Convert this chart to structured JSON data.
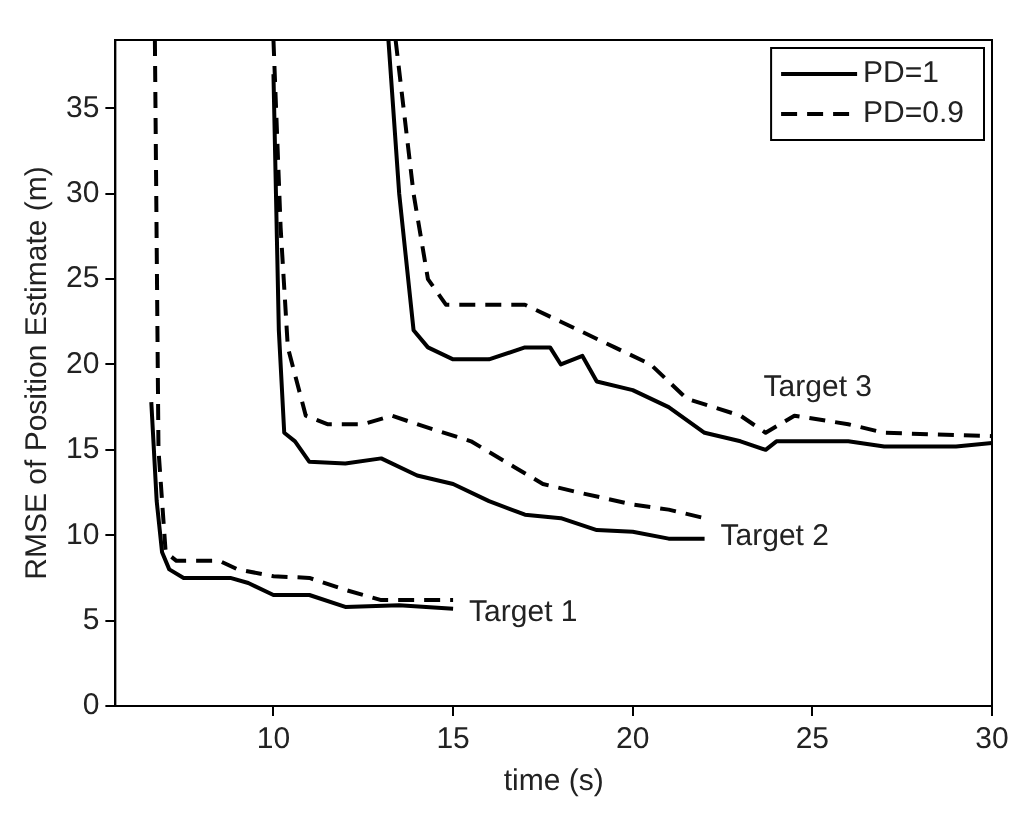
{
  "chart_data": {
    "type": "line",
    "xlabel": "time (s)",
    "ylabel": "RMSE of Position Estimate (m)",
    "xlim": [
      5.6,
      30
    ],
    "ylim": [
      0,
      39
    ],
    "xticks": [
      10,
      15,
      20,
      25,
      30
    ],
    "yticks": [
      0,
      5,
      10,
      15,
      20,
      25,
      30,
      35
    ],
    "grid": false,
    "legend": "top right",
    "marker": "none",
    "series": [
      {
        "name": "PD=1",
        "color": "#000000",
        "line_style": "solid",
        "x": [
          6.6,
          6.75,
          6.9,
          7.1,
          7.5,
          8.8,
          9.3,
          10,
          11,
          12,
          13.5,
          15
        ],
        "values": [
          17.8,
          12,
          9,
          8,
          7.5,
          7.5,
          7.2,
          6.5,
          6.5,
          5.8,
          5.9,
          5.7
        ]
      },
      {
        "name": "PD=0.9",
        "color": "#000000",
        "line_style": "dashed",
        "x": [
          6.7,
          6.8,
          7.0,
          7.3,
          8.5,
          9,
          10,
          11,
          12,
          13,
          15
        ],
        "values": [
          39,
          15,
          9,
          8.5,
          8.5,
          8,
          7.6,
          7.5,
          6.8,
          6.2,
          6.2
        ]
      },
      {
        "color": "#000000",
        "line_style": "solid",
        "x": [
          10,
          10.15,
          10.3,
          10.6,
          11,
          12,
          13,
          14,
          15,
          16,
          17,
          18,
          19,
          20,
          21,
          22
        ],
        "values": [
          37,
          22,
          16,
          15.5,
          14.3,
          14.2,
          14.5,
          13.5,
          13,
          12,
          11.2,
          11,
          10.3,
          10.2,
          9.8,
          9.8
        ]
      },
      {
        "color": "#000000",
        "line_style": "dashed",
        "x": [
          10,
          10.2,
          10.4,
          10.9,
          11.5,
          12.5,
          13.3,
          14,
          15.5,
          16.7,
          17.5,
          18.5,
          20,
          21,
          22
        ],
        "values": [
          39,
          28,
          21,
          17,
          16.5,
          16.5,
          17,
          16.5,
          15.5,
          14,
          13,
          12.5,
          11.8,
          11.5,
          11
        ]
      },
      {
        "color": "#000000",
        "line_style": "solid",
        "x": [
          13.2,
          13.5,
          13.9,
          14.3,
          15,
          16,
          17,
          17.7,
          18,
          18.6,
          19,
          20,
          21,
          22,
          23,
          23.7,
          24,
          26,
          27,
          29,
          30
        ],
        "values": [
          39,
          30,
          22,
          21,
          20.3,
          20.3,
          21,
          21,
          20,
          20.5,
          19,
          18.5,
          17.5,
          16,
          15.5,
          15,
          15.5,
          15.5,
          15.2,
          15.2,
          15.4
        ]
      },
      {
        "color": "#000000",
        "line_style": "dashed",
        "x": [
          13.4,
          13.9,
          14.3,
          14.8,
          15.5,
          17,
          18,
          19.5,
          20.5,
          21.5,
          23,
          23.7,
          24.5,
          26,
          27,
          30
        ],
        "values": [
          39,
          30,
          25,
          23.5,
          23.5,
          23.5,
          22.5,
          21,
          20,
          18,
          17,
          16,
          17,
          16.5,
          16,
          15.8
        ]
      }
    ],
    "annotations": [
      "Target 1",
      "Target 2",
      "Target 3"
    ]
  }
}
